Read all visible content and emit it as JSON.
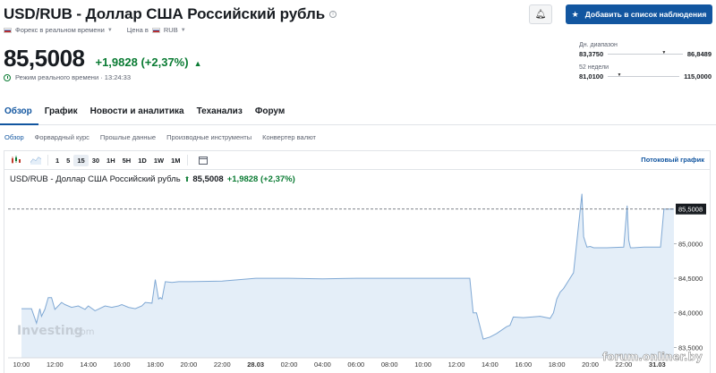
{
  "header": {
    "title": "USD/RUB - Доллар США Российский рубль",
    "info_icon": "info-icon",
    "market_label": "Форекс в реальном времени",
    "currency_prefix": "Цена в",
    "currency_value": "RUB"
  },
  "quote": {
    "price": "85,5008",
    "change": "+1,9828 (+2,37%)",
    "realtime_label": "Режим реального времени · 13:24:33"
  },
  "actions": {
    "alert_icon": "bell-plus-icon",
    "watchlist_label": "Добавить в список наблюдения"
  },
  "ranges": [
    {
      "label": "Дн. диапазон",
      "low": "83,3750",
      "high": "86,8489",
      "position": 0.72
    },
    {
      "label": "52 недели",
      "low": "81,0100",
      "high": "115,0000",
      "position": 0.13
    }
  ],
  "tabs": [
    {
      "label": "Обзор",
      "active": true
    },
    {
      "label": "График",
      "active": false
    },
    {
      "label": "Новости и аналитика",
      "active": false
    },
    {
      "label": "Теханализ",
      "active": false
    },
    {
      "label": "Форум",
      "active": false
    }
  ],
  "subtabs": [
    {
      "label": "Обзор",
      "active": true
    },
    {
      "label": "Форвардный курс",
      "active": false
    },
    {
      "label": "Прошлые данные",
      "active": false
    },
    {
      "label": "Производные инструменты",
      "active": false
    },
    {
      "label": "Конвертер валют",
      "active": false
    }
  ],
  "toolbar": {
    "candles_icon": "candlestick-icon",
    "area_icon": "area-chart-icon",
    "intervals": [
      "1",
      "5",
      "15",
      "30",
      "1H",
      "5H",
      "1D",
      "1W",
      "1M"
    ],
    "active_interval": "15",
    "calendar_icon": "calendar-icon",
    "stream_link": "Потоковый график"
  },
  "chart_header": {
    "name": "USD/RUB - Доллар США Российский рубль",
    "price": "85,5008",
    "change": "+1,9828 (+2,37%)"
  },
  "watermark": {
    "brand": "Investing",
    "suffix": ".com",
    "forum": "forum.onliner.by"
  },
  "colors": {
    "accent": "#1256a0",
    "positive": "#0a7b33",
    "area_fill": "#e4eef8",
    "area_line": "#7fa8d4"
  },
  "chart_data": {
    "type": "area",
    "x_ticks": [
      "10:00",
      "12:00",
      "14:00",
      "16:00",
      "18:00",
      "20:00",
      "22:00",
      "28.03",
      "02:00",
      "04:00",
      "06:00",
      "08:00",
      "10:00",
      "12:00",
      "14:00",
      "16:00",
      "18:00",
      "20:00",
      "22:00",
      "31.03"
    ],
    "y_ticks": [
      "83,5000",
      "84,0000",
      "84,5000",
      "85,0000"
    ],
    "ylim": [
      83.35,
      85.82
    ],
    "last_price_label": "85,5008",
    "last_value": 85.5008,
    "x": [
      0,
      0.3,
      0.45,
      0.55,
      0.6,
      0.7,
      0.8,
      0.9,
      1.0,
      1.1,
      1.2,
      1.3,
      1.5,
      1.7,
      1.9,
      2.0,
      2.2,
      2.5,
      2.7,
      2.9,
      3.0,
      3.2,
      3.4,
      3.6,
      3.7,
      3.9,
      4.0,
      4.1,
      4.15,
      4.2,
      4.3,
      4.5,
      4.7,
      5.0,
      6.0,
      7.0,
      8.0,
      9.0,
      10.0,
      11.0,
      12.0,
      13.0,
      13.4,
      13.5,
      13.6,
      13.8,
      14.0,
      14.2,
      14.5,
      14.6,
      14.7,
      15.0,
      15.5,
      15.8,
      15.9,
      16.0,
      16.1,
      16.2,
      16.5,
      16.75,
      16.8,
      16.9,
      17.0,
      17.1,
      17.5,
      18.0,
      18.1,
      18.15,
      18.2,
      18.3,
      18.6,
      19.0,
      19.1,
      19.2,
      19.5
    ],
    "values": [
      84.06,
      84.06,
      83.85,
      84.06,
      83.95,
      84.05,
      84.22,
      84.22,
      84.05,
      84.1,
      84.15,
      84.12,
      84.08,
      84.1,
      84.05,
      84.1,
      84.03,
      84.1,
      84.08,
      84.1,
      84.12,
      84.08,
      84.06,
      84.1,
      84.15,
      84.14,
      84.48,
      84.2,
      84.22,
      84.2,
      84.45,
      84.44,
      84.45,
      84.45,
      84.46,
      84.5,
      84.5,
      84.49,
      84.5,
      84.5,
      84.5,
      84.5,
      84.5,
      84.0,
      84.0,
      83.62,
      83.65,
      83.7,
      83.8,
      83.82,
      83.94,
      83.93,
      83.95,
      83.92,
      84.0,
      84.2,
      84.3,
      84.35,
      84.58,
      85.72,
      85.1,
      84.95,
      84.96,
      84.94,
      84.94,
      84.95,
      85.55,
      85.05,
      84.94,
      84.94,
      84.95,
      84.95,
      84.95,
      85.5,
      85.5
    ]
  }
}
